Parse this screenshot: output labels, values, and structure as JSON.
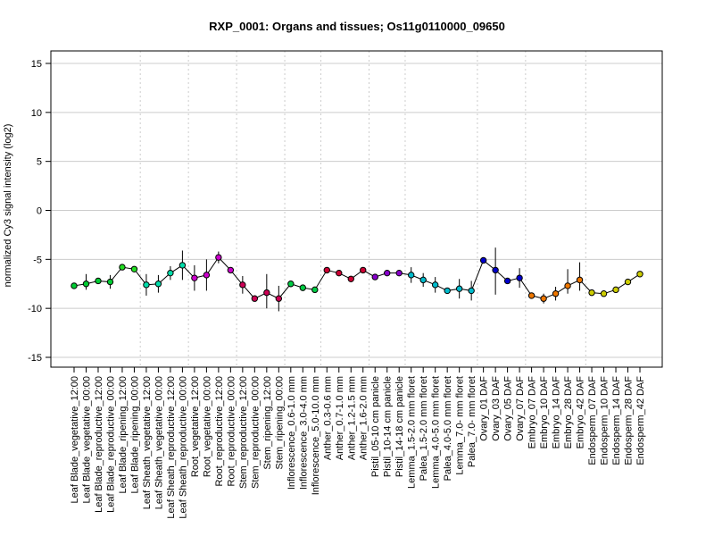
{
  "chart_data": {
    "type": "line",
    "title": "RXP_0001: Organs and tissues; Os11g0110000_09650",
    "xlabel": "",
    "ylabel": "normalized Cy3 signal intensity (log2)",
    "ylim": [
      -15,
      15
    ],
    "yticks": [
      -15,
      -10,
      -5,
      0,
      5,
      10,
      15
    ],
    "grid": true,
    "categories": [
      "Leaf Blade_vegetative_12:00",
      "Leaf Blade_vegetative_00:00",
      "Leaf Blade_reproductive_12:00",
      "Leaf Blade_reproductive_00:00",
      "Leaf Blade_ripening_12:00",
      "Leaf Blade_ripening_00:00",
      "Leaf Sheath_vegetative_12:00",
      "Leaf Sheath_vegetative_00:00",
      "Leaf Sheath_reproductive_12:00",
      "Leaf Sheath_reproductive_00:00",
      "Root_vegetative_12:00",
      "Root_vegetative_00:00",
      "Root_reproductive_12:00",
      "Root_reproductive_00:00",
      "Stem_reproductive_12:00",
      "Stem_reproductive_00:00",
      "Stem_ripening_12:00",
      "Stem_ripening_00:00",
      "Inflorescence_0.6-1.0 mm",
      "Inflorescence_3.0-4.0 mm",
      "Inflorescence_5.0-10.0 mm",
      "Anther_0.3-0.6 mm",
      "Anther_0.7-1.0 mm",
      "Anther_1.2-1.5 mm",
      "Anther_1.6-2.0 mm",
      "Pistil_05-10 cm panicle",
      "Pistil_10-14 cm panicle",
      "Pistil_14-18 cm panicle",
      "Lemma_1.5-2.0 mm floret",
      "Palea_1.5-2.0 mm floret",
      "Lemma_4.0-5.0 mm floret",
      "Palea_4.0-5.0 mm floret",
      "Lemma_7.0- mm floret",
      "Palea_7.0- mm floret",
      "Ovary_01 DAF",
      "Ovary_03 DAF",
      "Ovary_05 DAF",
      "Ovary_07 DAF",
      "Embryo_07 DAF",
      "Embryo_10 DAF",
      "Embryo_14 DAF",
      "Embryo_28 DAF",
      "Embryo_42 DAF",
      "Endosperm_07 DAF",
      "Endosperm_10 DAF",
      "Endosperm_14 DAF",
      "Endosperm_28 DAF",
      "Endosperm_42 DAF"
    ],
    "values": [
      -7.7,
      -7.5,
      -7.2,
      -7.3,
      -5.8,
      -6.0,
      -7.6,
      -7.5,
      -6.4,
      -5.6,
      -6.9,
      -6.6,
      -4.8,
      -6.1,
      -7.6,
      -9.0,
      -8.4,
      -9.0,
      -7.5,
      -7.9,
      -8.1,
      -6.1,
      -6.4,
      -7.0,
      -6.1,
      -6.8,
      -6.4,
      -6.4,
      -6.6,
      -7.1,
      -7.6,
      -8.2,
      -8.0,
      -8.2,
      -5.1,
      -6.1,
      -7.2,
      -6.9,
      -8.7,
      -9.0,
      -8.5,
      -7.7,
      -7.1,
      -8.4,
      -8.5,
      -8.1,
      -7.3,
      -6.5
    ],
    "errors": [
      [
        -7.7,
        -7.7
      ],
      [
        -8.1,
        -6.5
      ],
      [
        -7.5,
        -6.9
      ],
      [
        -8.0,
        -6.6
      ],
      [
        -5.8,
        -5.8
      ],
      [
        -6.0,
        -6.0
      ],
      [
        -8.7,
        -6.5
      ],
      [
        -8.4,
        -6.6
      ],
      [
        -7.1,
        -5.7
      ],
      [
        -7.1,
        -4.1
      ],
      [
        -8.2,
        -5.6
      ],
      [
        -8.2,
        -5.0
      ],
      [
        -5.4,
        -4.2
      ],
      [
        -6.1,
        -6.1
      ],
      [
        -8.5,
        -6.7
      ],
      [
        -9.3,
        -8.7
      ],
      [
        -10.0,
        -6.5
      ],
      [
        -10.3,
        -7.7
      ],
      [
        -7.5,
        -7.5
      ],
      [
        -7.9,
        -7.9
      ],
      [
        -8.1,
        -8.1
      ],
      [
        -6.1,
        -6.1
      ],
      [
        -6.4,
        -6.4
      ],
      [
        -7.0,
        -7.0
      ],
      [
        -6.1,
        -6.1
      ],
      [
        -6.8,
        -6.8
      ],
      [
        -6.4,
        -6.4
      ],
      [
        -6.4,
        -6.4
      ],
      [
        -7.4,
        -5.8
      ],
      [
        -7.8,
        -6.4
      ],
      [
        -8.4,
        -6.8
      ],
      [
        -8.2,
        -8.2
      ],
      [
        -9.0,
        -7.0
      ],
      [
        -9.2,
        -7.2
      ],
      [
        -5.1,
        -5.1
      ],
      [
        -8.6,
        -3.8
      ],
      [
        -7.2,
        -7.2
      ],
      [
        -7.9,
        -5.9
      ],
      [
        -8.7,
        -8.7
      ],
      [
        -9.5,
        -8.5
      ],
      [
        -9.2,
        -7.8
      ],
      [
        -8.5,
        -6.0
      ],
      [
        -8.2,
        -5.3
      ],
      [
        -8.4,
        -8.4
      ],
      [
        -8.5,
        -8.5
      ],
      [
        -8.1,
        -8.1
      ],
      [
        -7.3,
        -7.3
      ],
      [
        -6.5,
        -6.5
      ]
    ],
    "colors": [
      "#00cc33",
      "#00cc33",
      "#00cc33",
      "#00cc33",
      "#22dd22",
      "#22dd22",
      "#00ddaa",
      "#00ddaa",
      "#00ddaa",
      "#00ddaa",
      "#cc00cc",
      "#cc00cc",
      "#cc00cc",
      "#cc00cc",
      "#cc0055",
      "#cc0055",
      "#cc0055",
      "#cc0055",
      "#00cc44",
      "#00cc44",
      "#00cc44",
      "#cc0033",
      "#cc0033",
      "#cc0033",
      "#cc0033",
      "#8800cc",
      "#8800cc",
      "#8800cc",
      "#00bbcc",
      "#00bbcc",
      "#00bbcc",
      "#00bbcc",
      "#00bbcc",
      "#00bbcc",
      "#0000cc",
      "#0000cc",
      "#0000cc",
      "#0000cc",
      "#ee7700",
      "#ee7700",
      "#ee7700",
      "#ee7700",
      "#ee7700",
      "#cccc00",
      "#cccc00",
      "#cccc00",
      "#cccc00",
      "#cccc00"
    ],
    "group_separators_after": [
      5,
      9,
      13,
      17,
      20,
      24,
      27,
      33,
      37,
      42
    ],
    "line_color": "#000000",
    "grid_color": "#cccccc"
  }
}
